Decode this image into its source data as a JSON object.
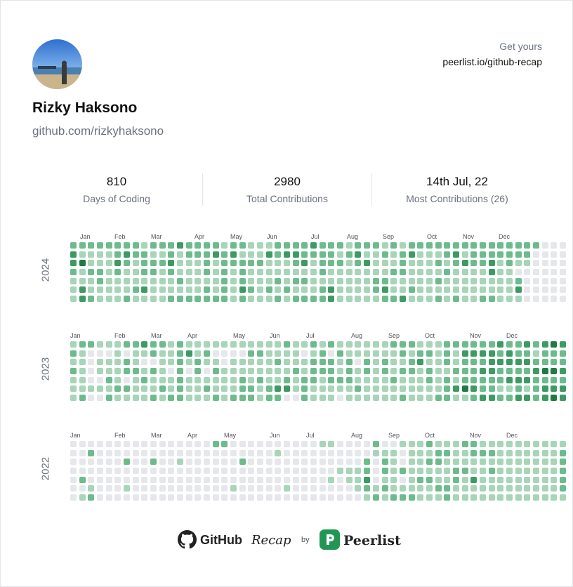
{
  "profile": {
    "name": "Rizky Haksono",
    "link": "github.com/rizkyhaksono",
    "cta_top": "Get yours",
    "cta_url": "peerlist.io/github-recap"
  },
  "stats": [
    {
      "value": "810",
      "label": "Days of Coding"
    },
    {
      "value": "2980",
      "label": "Total Contributions"
    },
    {
      "value": "14th Jul, 22",
      "label": "Most Contributions (26)"
    }
  ],
  "palette": {
    "empty": "#e5e7eb",
    "l1": "#a6d5b7",
    "l2": "#6cbb8c",
    "l3": "#3d9a63",
    "l4": "#1f7a45",
    "brand_green": "#219653"
  },
  "years": [
    {
      "year": "2024",
      "months": [
        "Jan",
        "Feb",
        "Mar",
        "Apr",
        "May",
        "Jun",
        "Jul",
        "Aug",
        "Sep",
        "Oct",
        "Nov",
        "Dec"
      ],
      "rows": [
        "22222222122232222122111222232221222121222222222222222000",
        "31111232211212223231113233222212311212311123122222220000",
        "34111321222311121222221112312221231112111212322312110000",
        "21221211221211121212111111112111111122111121111311000000",
        "11121111111121111212111212211111112211111211111111200000",
        "13111112311111121213212121112311112311211111111111300000",
        "13211121111222222212111212222311111223111212112211100000"
      ]
    },
    {
      "year": "2023",
      "months": [
        "Jan",
        "Feb",
        "Mar",
        "Apr",
        "May",
        "Jun",
        "Jul",
        "Aug",
        "Sep",
        "Oct",
        "Nov",
        "Dec"
      ],
      "rows": [
        "12211122322121111111111121121211111122211122222232232343",
        "21000101121123120000221111012021111112122121333323221222",
        "11011121001121211011111211122212021211231121222333332222",
        "21011122121020202111111112122212121212212112223322223443",
        "11002101211121111112121121221222111121112121222223332222",
        "11111221112121121112212331211111211111111123432211212333",
        "12002111121221112122212200211101111112111221123322332343"
      ]
    },
    {
      "year": "2022",
      "months": [
        "Jan",
        "Feb",
        "Mar",
        "Apr",
        "May",
        "Jun",
        "Jul",
        "Aug",
        "Sep",
        "Oct",
        "Nov",
        "Dec"
      ],
      "rows": [
        "00000000000000002200000000001100002001112111221111111111",
        "00200000000000000000000100000000001110111221122211111112",
        "00000020020010000002000000000000020210112211111111111112",
        "00000000000000000000000000000011120212111112211211111112",
        "02000000000000000000000000000101130110122112131111111112",
        "00100010000000000010000010000000121211111221111111111112",
        "01200000000000000000000000000000012122211121111111111111"
      ]
    }
  ],
  "footer": {
    "github": "GitHub",
    "recap": "Recap",
    "by": "by",
    "peerlist": "Peerlist"
  }
}
